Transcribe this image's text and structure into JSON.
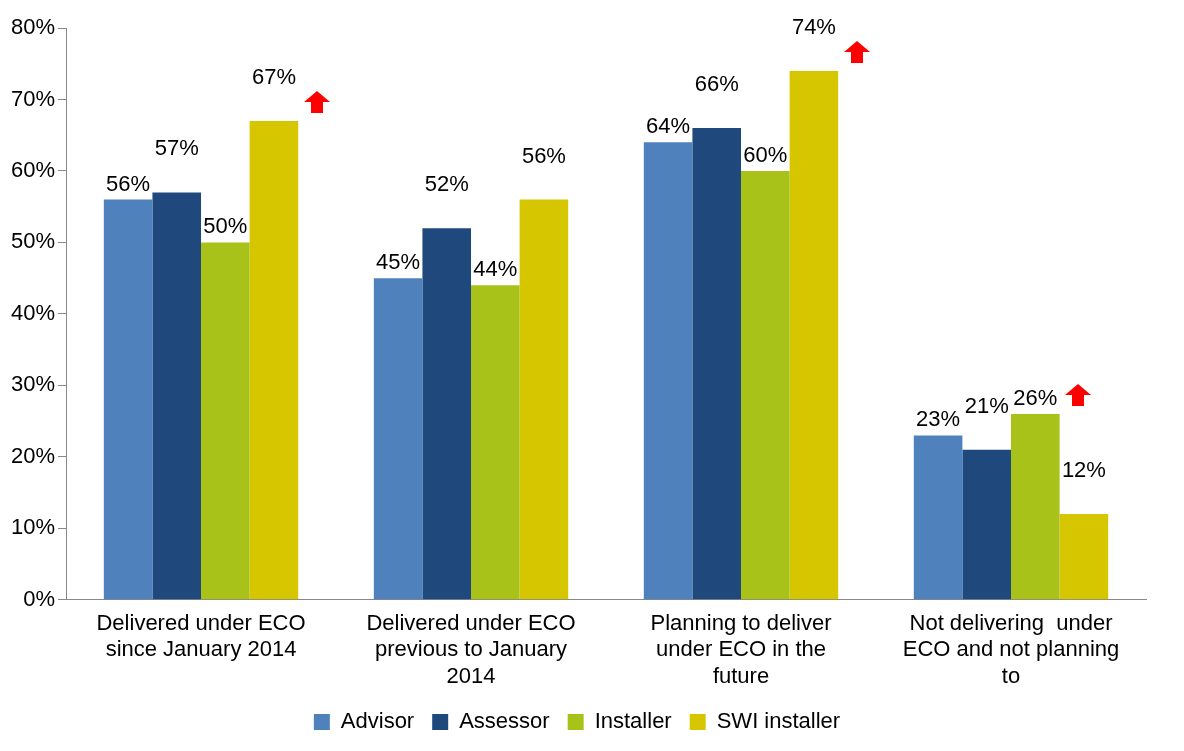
{
  "chart_data": {
    "type": "bar",
    "categories": [
      "Delivered under ECO since January 2014",
      "Delivered under ECO previous to January 2014",
      "Planning to deliver under ECO in the future",
      "Not delivering  under ECO and not planning to"
    ],
    "series": [
      {
        "name": "Advisor",
        "color": "#4f81bd",
        "values": [
          56,
          45,
          64,
          23
        ],
        "value_labels": [
          "56%",
          "45%",
          "64%",
          "23%"
        ]
      },
      {
        "name": "Assessor",
        "color": "#1f497d",
        "values": [
          57,
          52,
          66,
          21
        ],
        "value_labels": [
          "57%",
          "52%",
          "66%",
          "21%"
        ]
      },
      {
        "name": "Installer",
        "color": "#a9c21a",
        "values": [
          50,
          44,
          60,
          26
        ],
        "value_labels": [
          "50%",
          "44%",
          "60%",
          "26%"
        ]
      },
      {
        "name": "SWI installer",
        "color": "#d6c600",
        "values": [
          67,
          56,
          74,
          12
        ],
        "value_labels": [
          "67%",
          "56%",
          "74%",
          "12%"
        ]
      }
    ],
    "ylim": [
      0,
      80
    ],
    "yticks": [
      {
        "value": 0,
        "label": "0%"
      },
      {
        "value": 10,
        "label": "10%"
      },
      {
        "value": 20,
        "label": "20%"
      },
      {
        "value": 30,
        "label": "30%"
      },
      {
        "value": 40,
        "label": "40%"
      },
      {
        "value": 50,
        "label": "50%"
      },
      {
        "value": 60,
        "label": "60%"
      },
      {
        "value": 70,
        "label": "70%"
      },
      {
        "value": 80,
        "label": "80%"
      }
    ],
    "grid": false,
    "legend": "bottom"
  }
}
